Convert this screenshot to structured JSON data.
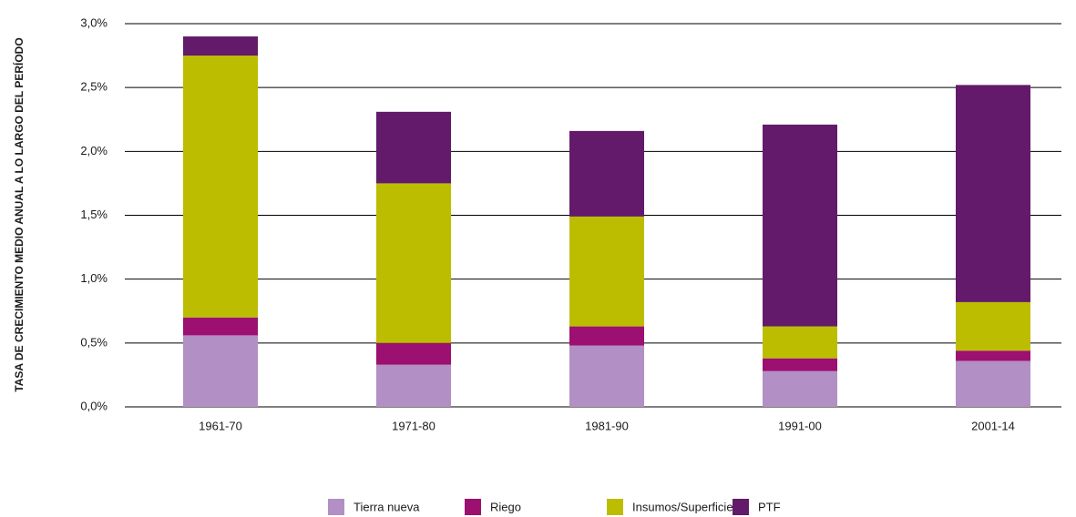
{
  "chart_data": {
    "type": "stacked_bar",
    "y_label": "TASA DE CRECIMIENTO MEDIO ANUAL A LO LARGO DEL PERÍODO",
    "categories": [
      "1961-70",
      "1971-80",
      "1981-90",
      "1991-00",
      "2001-14"
    ],
    "series": [
      {
        "name": "Tierra nueva",
        "color": "#b28fc4",
        "values": [
          0.56,
          0.33,
          0.48,
          0.28,
          0.36
        ]
      },
      {
        "name": "Riego",
        "color": "#9b1070",
        "values": [
          0.14,
          0.17,
          0.15,
          0.1,
          0.08
        ]
      },
      {
        "name": "Insumos/Superficie",
        "color": "#bcbd00",
        "values": [
          2.05,
          1.25,
          0.86,
          0.25,
          0.38
        ]
      },
      {
        "name": "PTF",
        "color": "#631a6a",
        "values": [
          0.15,
          0.56,
          0.67,
          1.58,
          1.7
        ]
      }
    ],
    "ylim": [
      0,
      3
    ],
    "yticks": [
      {
        "value": 0,
        "label": "0,0%"
      },
      {
        "value": 0.5,
        "label": "0,5%"
      },
      {
        "value": 1,
        "label": "1,0%"
      },
      {
        "value": 1.5,
        "label": "1,5%"
      },
      {
        "value": 2,
        "label": "2,0%"
      },
      {
        "value": 2.5,
        "label": "2,5%"
      },
      {
        "value": 3,
        "label": "3,0%"
      }
    ],
    "grid": true,
    "legend": "bottom"
  }
}
